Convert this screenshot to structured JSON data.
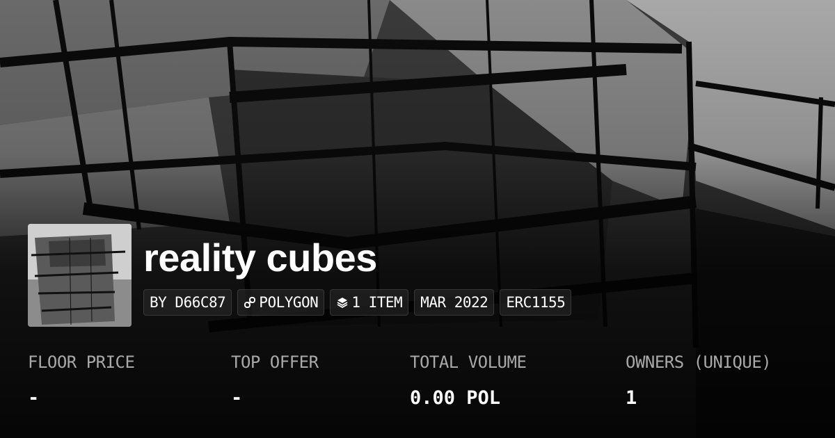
{
  "collection": {
    "title": "reality cubes"
  },
  "chips": [
    {
      "label": "BY D66C87",
      "icon": ""
    },
    {
      "label": "POLYGON",
      "icon": "chain-link-icon"
    },
    {
      "label": "1 ITEM",
      "icon": "layers-icon"
    },
    {
      "label": "MAR 2022",
      "icon": ""
    },
    {
      "label": "ERC1155",
      "icon": ""
    }
  ],
  "stats": [
    {
      "label": "FLOOR PRICE",
      "value": "-"
    },
    {
      "label": "TOP OFFER",
      "value": "-"
    },
    {
      "label": "TOTAL VOLUME",
      "value": "0.00 POL"
    },
    {
      "label": "OWNERS (UNIQUE)",
      "value": "1"
    }
  ]
}
